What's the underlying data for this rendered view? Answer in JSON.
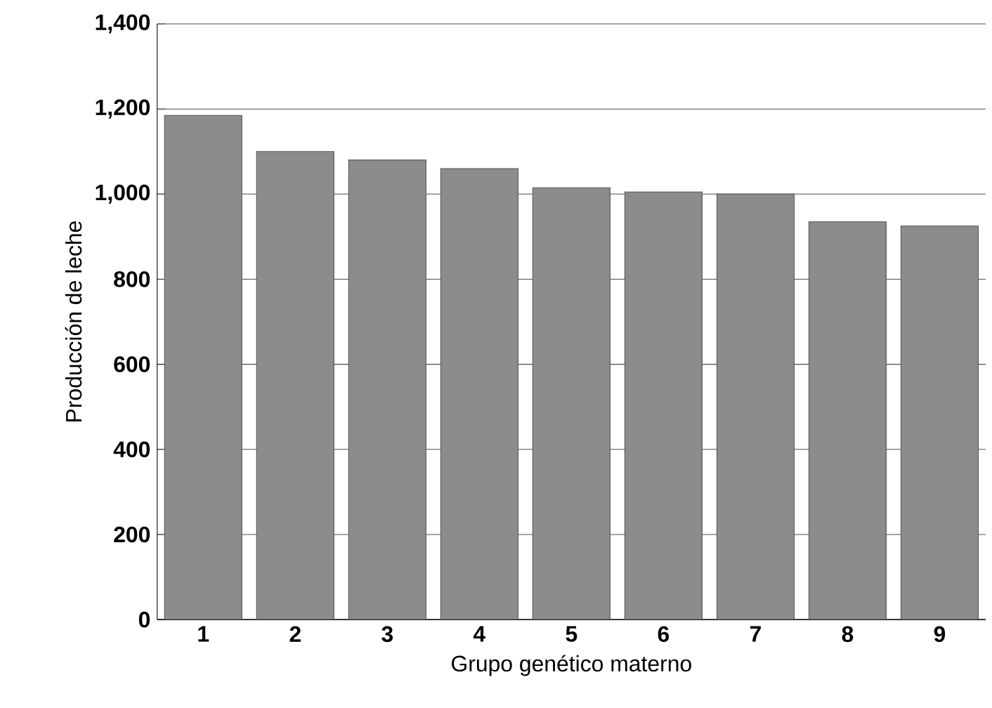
{
  "chart_data": {
    "type": "bar",
    "xlabel": "Grupo genético materno",
    "ylabel": "Producción de leche",
    "categories": [
      "1",
      "2",
      "3",
      "4",
      "5",
      "6",
      "7",
      "8",
      "9"
    ],
    "values": [
      1185,
      1100,
      1080,
      1060,
      1015,
      1005,
      1000,
      935,
      925
    ],
    "color": "#8c8c8c",
    "ylim": [
      0,
      1400
    ],
    "yticks": [
      0,
      {
        "value": 200,
        "label": "200"
      },
      {
        "value": 400,
        "label": "400"
      },
      {
        "value": 600,
        "label": "600"
      },
      {
        "value": 800,
        "label": "800"
      },
      {
        "value": 1000,
        "label": "1,000"
      },
      {
        "value": 1200,
        "label": "1,200"
      },
      {
        "value": 1400,
        "label": "1,400"
      }
    ],
    "grid": "y"
  }
}
